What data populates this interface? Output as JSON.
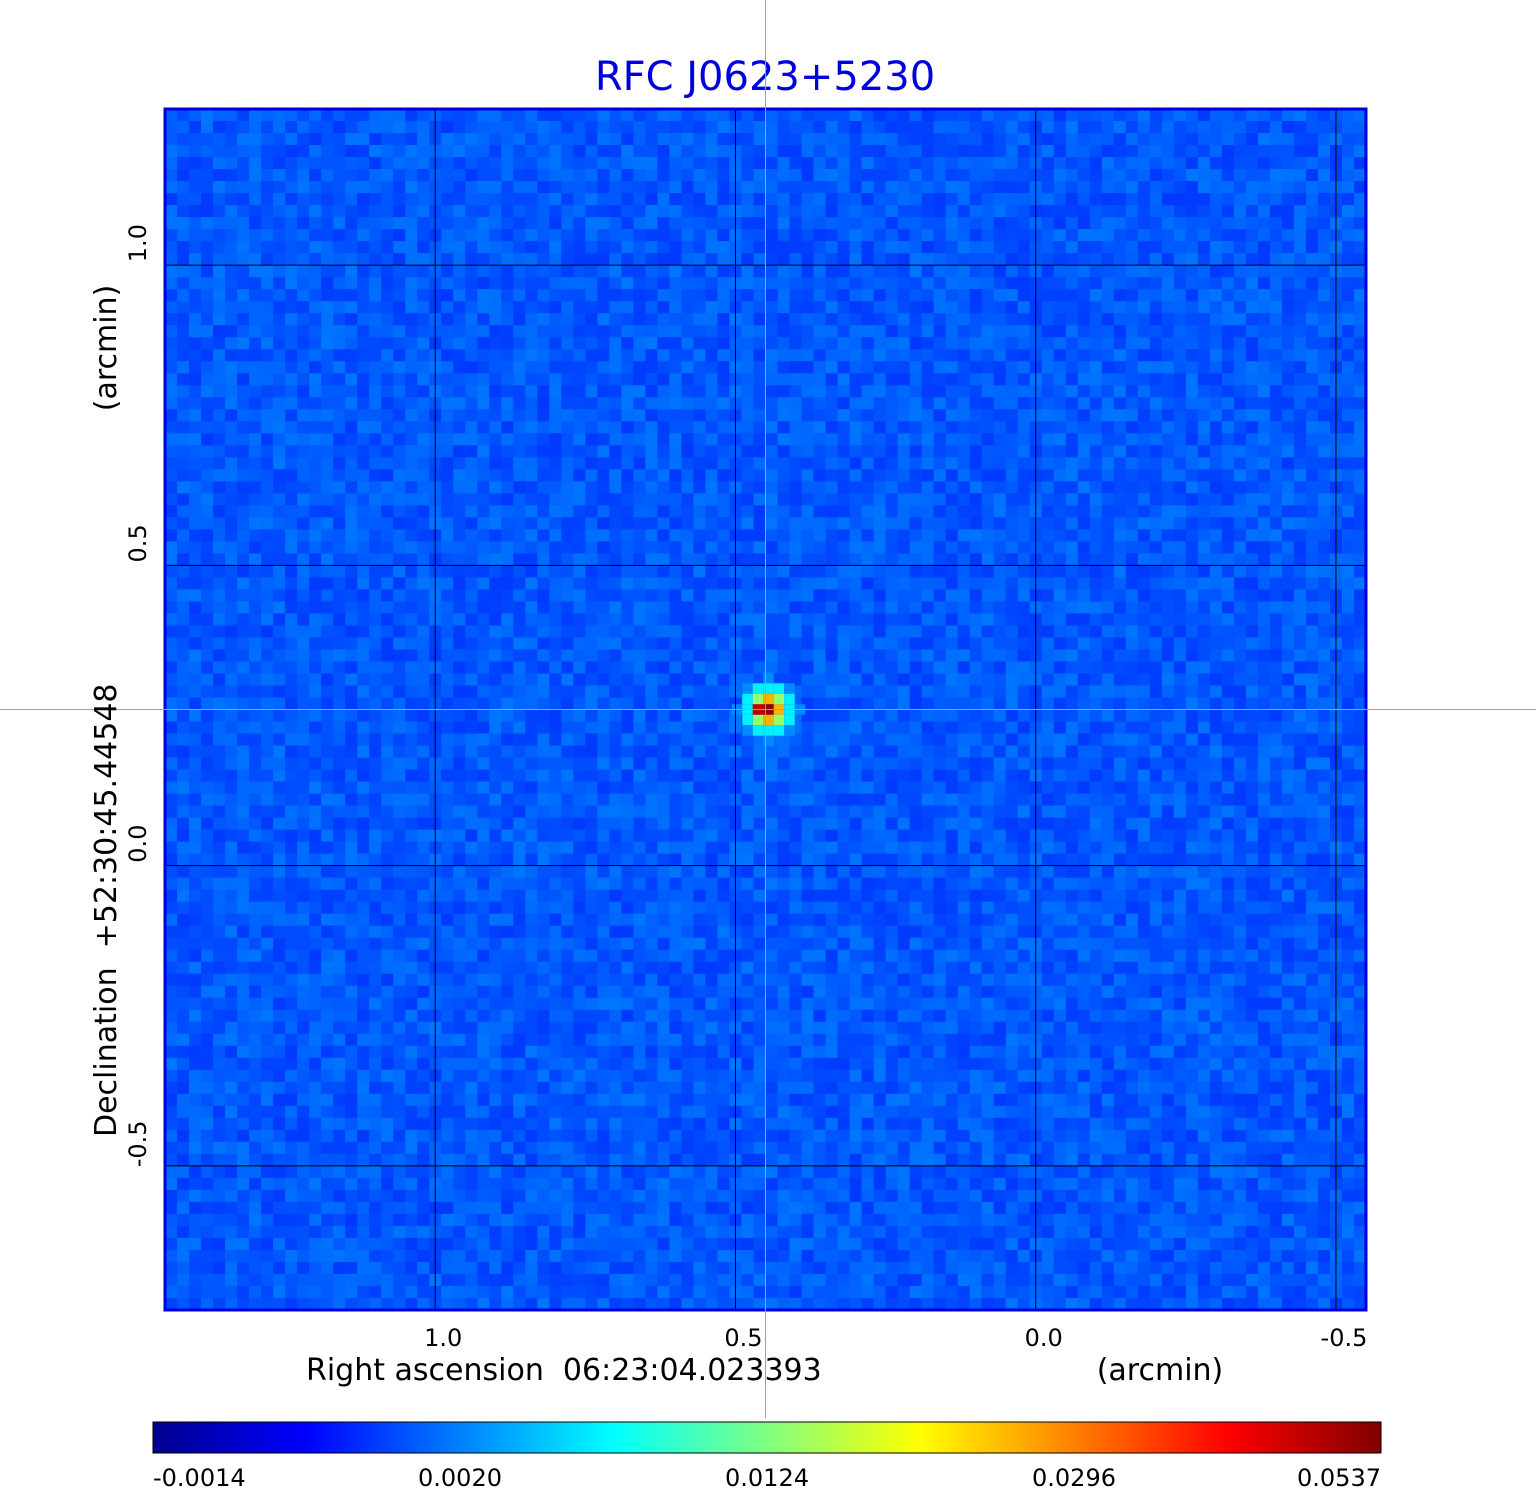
{
  "chart_data": {
    "type": "heatmap",
    "title": "RFC J0623+5230",
    "xlabel": "Right ascension  06:23:04.023393",
    "xunit": "(arcmin)",
    "ylabel": "Declination  +52:30:45.44548",
    "yunit": "(arcmin)",
    "xlim": [
      1.45,
      -0.55
    ],
    "ylim": [
      -0.74,
      1.26
    ],
    "x_ticks": [
      {
        "value": 1.0,
        "label": "1.0"
      },
      {
        "value": 0.5,
        "label": "0.5"
      },
      {
        "value": 0.0,
        "label": "0.0"
      },
      {
        "value": -0.5,
        "label": "-0.5"
      }
    ],
    "y_ticks": [
      {
        "value": 1.0,
        "label": "1.0"
      },
      {
        "value": 0.5,
        "label": "0.5"
      },
      {
        "value": 0.0,
        "label": "0.0"
      },
      {
        "value": -0.5,
        "label": "-0.5"
      }
    ],
    "grid": true,
    "crosshair": {
      "x": 0.45,
      "y": 0.26
    },
    "peak": {
      "x": 0.445,
      "y": 0.26,
      "value": 0.0537
    },
    "background_level": 0.0003,
    "colorbar": {
      "labels": [
        "-0.0014",
        "0.0020",
        "0.0124",
        "0.0296",
        "0.0537"
      ],
      "colormap": [
        "#00008f",
        "#0000ff",
        "#0080ff",
        "#00ffff",
        "#80ff80",
        "#ffff00",
        "#ff8000",
        "#ff0000",
        "#800000"
      ]
    },
    "colors": {
      "title": "#0000dd",
      "crosshair": "#33ee33",
      "frame": "#0000dd",
      "grid": "#000000"
    }
  }
}
